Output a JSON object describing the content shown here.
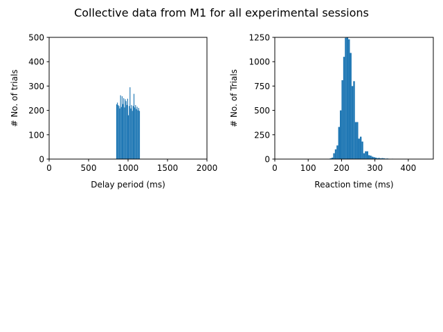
{
  "figure": {
    "suptitle": "Collective data from M1 for all experimental sessions",
    "bar_color": "#1f77b4"
  },
  "chart_data": [
    {
      "type": "bar",
      "subtype": "histogram",
      "xlabel": "Delay period (ms)",
      "ylabel": "# No. of trials",
      "xlim": [
        0,
        2000
      ],
      "ylim": [
        0,
        500
      ],
      "xticks": [
        "0",
        "500",
        "1000",
        "1500",
        "2000"
      ],
      "yticks": [
        "0",
        "100",
        "200",
        "300",
        "400",
        "500"
      ],
      "grid": false,
      "bin_width": 10,
      "bin_start": 850,
      "counts": [
        225,
        232,
        222,
        218,
        208,
        262,
        214,
        258,
        226,
        250,
        212,
        246,
        238,
        222,
        248,
        180,
        218,
        295,
        208,
        222,
        198,
        218,
        268,
        212,
        222,
        205,
        215,
        200,
        210,
        198
      ]
    },
    {
      "type": "bar",
      "subtype": "histogram",
      "xlabel": "Reaction time (ms)",
      "ylabel": "# No. of Trials",
      "xlim": [
        0,
        475
      ],
      "ylim": [
        0,
        1250
      ],
      "xticks": [
        "0",
        "100",
        "200",
        "300",
        "400"
      ],
      "yticks": [
        "0",
        "250",
        "500",
        "750",
        "1000",
        "1250"
      ],
      "grid": false,
      "bin_width": 5,
      "bin_start": 160,
      "counts": [
        3,
        8,
        15,
        60,
        100,
        140,
        330,
        500,
        810,
        1050,
        1245,
        1250,
        1230,
        1090,
        750,
        800,
        380,
        380,
        210,
        230,
        180,
        60,
        80,
        80,
        40,
        35,
        25,
        20,
        15,
        10,
        12,
        8,
        10,
        8,
        5,
        6,
        4,
        3,
        4,
        2,
        2,
        3,
        2,
        1,
        1,
        1,
        1,
        0,
        0,
        1
      ]
    }
  ]
}
